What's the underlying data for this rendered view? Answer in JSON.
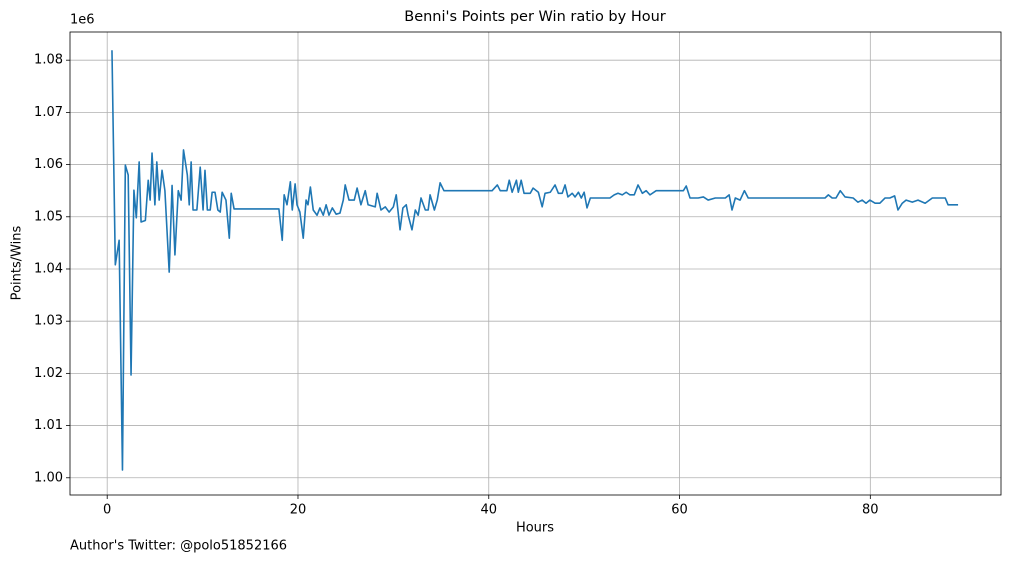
{
  "chart_data": {
    "type": "line",
    "title": "Benni's Points per Win ratio by Hour",
    "xlabel": "Hours",
    "ylabel": "Points/Wins",
    "y_offset_label": "1e6",
    "annotation": "Author's Twitter: @polo51852166",
    "grid": true,
    "xlim": [
      -3.9,
      93.7
    ],
    "ylim": [
      0.9967,
      1.0854
    ],
    "xticks": [
      0,
      20,
      40,
      60,
      80
    ],
    "yticks": [
      {
        "value": 1.0,
        "label": "1.00"
      },
      {
        "value": 1.01,
        "label": "1.01"
      },
      {
        "value": 1.02,
        "label": "1.02"
      },
      {
        "value": 1.03,
        "label": "1.03"
      },
      {
        "value": 1.04,
        "label": "1.04"
      },
      {
        "value": 1.05,
        "label": "1.05"
      },
      {
        "value": 1.06,
        "label": "1.06"
      },
      {
        "value": 1.07,
        "label": "1.07"
      },
      {
        "value": 1.08,
        "label": "1.08"
      }
    ],
    "x": [
      0.5,
      0.85,
      1.25,
      1.6,
      1.9,
      2.2,
      2.5,
      2.8,
      3.05,
      3.35,
      3.55,
      4.0,
      4.3,
      4.5,
      4.7,
      5.0,
      5.2,
      5.45,
      5.75,
      6.05,
      6.5,
      6.8,
      7.1,
      7.45,
      7.75,
      8.0,
      8.4,
      8.6,
      8.8,
      9.0,
      9.4,
      9.75,
      10.05,
      10.25,
      10.5,
      10.8,
      11.0,
      11.3,
      11.6,
      11.85,
      12.05,
      12.45,
      12.8,
      13.0,
      13.3,
      18.0,
      18.35,
      18.55,
      18.85,
      19.2,
      19.4,
      19.7,
      19.9,
      20.2,
      20.55,
      20.85,
      21.05,
      21.3,
      21.6,
      22.0,
      22.3,
      22.65,
      22.95,
      23.25,
      23.6,
      24.0,
      24.4,
      24.75,
      24.95,
      25.35,
      25.9,
      26.2,
      26.6,
      27.05,
      27.35,
      28.1,
      28.3,
      28.7,
      29.15,
      29.55,
      30.0,
      30.3,
      30.7,
      31.0,
      31.35,
      31.55,
      31.95,
      32.3,
      32.6,
      32.9,
      33.35,
      33.65,
      33.85,
      34.3,
      34.6,
      34.9,
      35.3,
      40.35,
      40.9,
      41.2,
      41.9,
      42.15,
      42.45,
      42.9,
      43.1,
      43.4,
      43.7,
      44.35,
      44.65,
      45.2,
      45.6,
      45.9,
      46.45,
      46.95,
      47.3,
      47.7,
      48.0,
      48.3,
      48.75,
      49.05,
      49.4,
      49.7,
      50.0,
      50.3,
      50.65,
      52.7,
      53.15,
      53.55,
      54.0,
      54.4,
      54.8,
      55.25,
      55.65,
      56.1,
      56.5,
      56.9,
      57.55,
      58.2,
      59.2,
      60.4,
      60.7,
      61.1,
      61.95,
      62.5,
      63.0,
      63.75,
      64.8,
      65.2,
      65.5,
      65.85,
      66.35,
      66.8,
      67.2,
      75.25,
      75.6,
      76.0,
      76.4,
      76.85,
      77.35,
      78.2,
      78.7,
      79.15,
      79.55,
      79.95,
      80.5,
      81.0,
      81.55,
      82.05,
      82.55,
      82.9,
      83.35,
      83.75,
      84.4,
      85.0,
      85.75,
      86.5,
      87.85,
      88.15,
      89.2
    ],
    "series": [
      {
        "color": "#1f77b4",
        "values": [
          1.0819,
          1.0408,
          1.0455,
          1.0015,
          1.0599,
          1.058,
          1.0197,
          1.0551,
          1.0498,
          1.0605,
          1.049,
          1.0493,
          1.057,
          1.0532,
          1.0622,
          1.0523,
          1.0605,
          1.0532,
          1.0589,
          1.055,
          1.0394,
          1.056,
          1.0427,
          1.055,
          1.0532,
          1.0628,
          1.058,
          1.0523,
          1.0605,
          1.0513,
          1.0513,
          1.0595,
          1.0513,
          1.0589,
          1.0513,
          1.0513,
          1.0547,
          1.0547,
          1.0513,
          1.0509,
          1.0547,
          1.0532,
          1.0459,
          1.0545,
          1.0515,
          1.0515,
          1.0455,
          1.0542,
          1.0523,
          1.0567,
          1.0513,
          1.0563,
          1.0523,
          1.0509,
          1.0459,
          1.0532,
          1.0523,
          1.0557,
          1.0513,
          1.0503,
          1.0517,
          1.0503,
          1.0523,
          1.0503,
          1.0517,
          1.0505,
          1.0507,
          1.0532,
          1.0561,
          1.0532,
          1.0532,
          1.0555,
          1.0523,
          1.055,
          1.0523,
          1.0519,
          1.0545,
          1.0513,
          1.0519,
          1.0509,
          1.0519,
          1.0542,
          1.0475,
          1.0517,
          1.0523,
          1.0503,
          1.0475,
          1.0513,
          1.0503,
          1.0536,
          1.0513,
          1.0513,
          1.0542,
          1.0513,
          1.0532,
          1.0565,
          1.055,
          1.055,
          1.0561,
          1.055,
          1.055,
          1.057,
          1.0547,
          1.057,
          1.0547,
          1.057,
          1.0545,
          1.0545,
          1.0555,
          1.0547,
          1.0519,
          1.0545,
          1.0547,
          1.0561,
          1.0545,
          1.0545,
          1.0561,
          1.0538,
          1.0545,
          1.0538,
          1.0547,
          1.0536,
          1.0547,
          1.0517,
          1.0536,
          1.0536,
          1.0542,
          1.0545,
          1.0542,
          1.0547,
          1.0542,
          1.0542,
          1.0561,
          1.0545,
          1.055,
          1.0542,
          1.055,
          1.055,
          1.055,
          1.055,
          1.0559,
          1.0536,
          1.0536,
          1.0538,
          1.0532,
          1.0536,
          1.0536,
          1.0542,
          1.0513,
          1.0536,
          1.0532,
          1.055,
          1.0536,
          1.0536,
          1.0542,
          1.0536,
          1.0536,
          1.055,
          1.0538,
          1.0536,
          1.0528,
          1.0532,
          1.0526,
          1.0532,
          1.0526,
          1.0526,
          1.0536,
          1.0536,
          1.054,
          1.0513,
          1.0526,
          1.0532,
          1.0528,
          1.0532,
          1.0526,
          1.0536,
          1.0536,
          1.0523,
          1.0523
        ]
      }
    ]
  }
}
